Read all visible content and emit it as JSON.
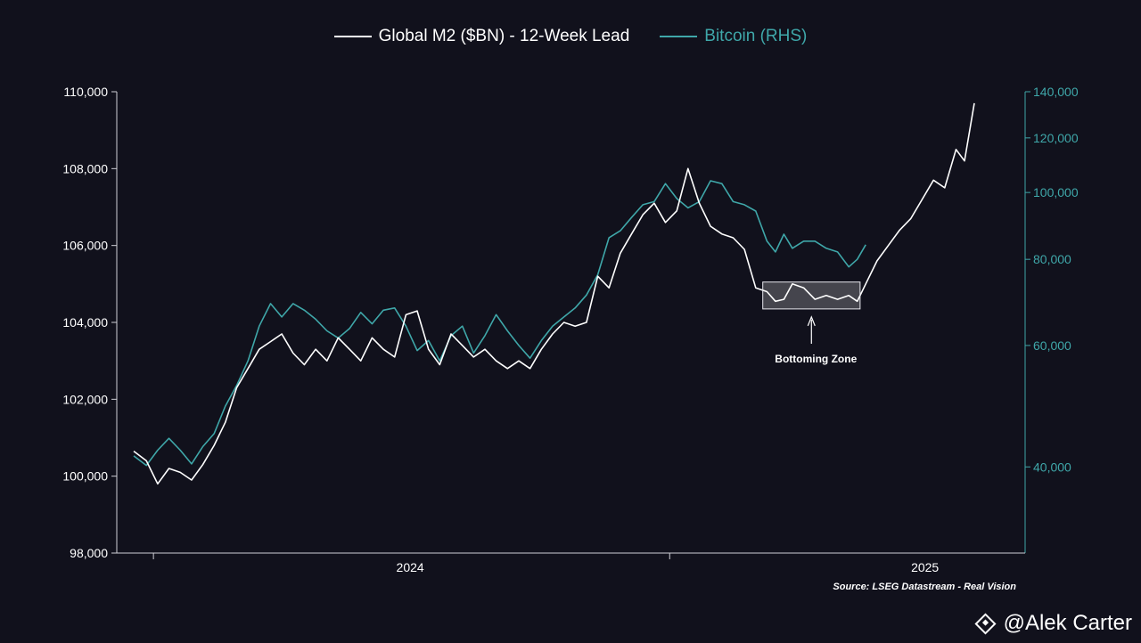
{
  "chart_data": {
    "type": "line",
    "title": "",
    "xlabel": "",
    "source": "Source: LSEG Datastream - Real Vision",
    "x_ticks": [
      "2024",
      "2025"
    ],
    "y_left": {
      "label": "",
      "min": 98000,
      "max": 110000,
      "ticks": [
        "98,000",
        "100,000",
        "102,000",
        "104,000",
        "106,000",
        "108,000",
        "110,000"
      ],
      "tick_values": [
        98000,
        100000,
        102000,
        104000,
        106000,
        108000,
        110000
      ]
    },
    "y_right": {
      "label": "",
      "scale": "log",
      "min": 30000,
      "max": 140000,
      "ticks": [
        "40,000",
        "60,000",
        "80,000",
        "100,000",
        "120,000",
        "140,000"
      ],
      "tick_values": [
        40000,
        60000,
        80000,
        100000,
        120000,
        140000
      ]
    },
    "series": [
      {
        "name": "Global M2 ($BN) - 12-Week Lead",
        "axis": "left",
        "color": "#ffffff",
        "points": [
          [
            "2023-09-01",
            100650
          ],
          [
            "2023-09-10",
            100400
          ],
          [
            "2023-09-18",
            99800
          ],
          [
            "2023-09-26",
            100200
          ],
          [
            "2023-10-04",
            100100
          ],
          [
            "2023-10-12",
            99900
          ],
          [
            "2023-10-20",
            100300
          ],
          [
            "2023-10-28",
            100800
          ],
          [
            "2023-11-05",
            101400
          ],
          [
            "2023-11-13",
            102300
          ],
          [
            "2023-11-21",
            102800
          ],
          [
            "2023-11-29",
            103300
          ],
          [
            "2023-12-07",
            103500
          ],
          [
            "2023-12-15",
            103700
          ],
          [
            "2023-12-23",
            103200
          ],
          [
            "2023-12-31",
            102900
          ],
          [
            "2024-01-08",
            103300
          ],
          [
            "2024-01-16",
            103000
          ],
          [
            "2024-01-24",
            103600
          ],
          [
            "2024-02-01",
            103300
          ],
          [
            "2024-02-09",
            103000
          ],
          [
            "2024-02-17",
            103600
          ],
          [
            "2024-02-25",
            103300
          ],
          [
            "2024-03-04",
            103100
          ],
          [
            "2024-03-12",
            104200
          ],
          [
            "2024-03-20",
            104300
          ],
          [
            "2024-03-28",
            103300
          ],
          [
            "2024-04-05",
            102900
          ],
          [
            "2024-04-13",
            103700
          ],
          [
            "2024-04-21",
            103400
          ],
          [
            "2024-04-29",
            103100
          ],
          [
            "2024-05-07",
            103300
          ],
          [
            "2024-05-15",
            103000
          ],
          [
            "2024-05-23",
            102800
          ],
          [
            "2024-05-31",
            103000
          ],
          [
            "2024-06-08",
            102800
          ],
          [
            "2024-06-16",
            103300
          ],
          [
            "2024-06-24",
            103700
          ],
          [
            "2024-07-02",
            104000
          ],
          [
            "2024-07-10",
            103900
          ],
          [
            "2024-07-18",
            104000
          ],
          [
            "2024-07-26",
            105200
          ],
          [
            "2024-08-03",
            104900
          ],
          [
            "2024-08-11",
            105800
          ],
          [
            "2024-08-19",
            106300
          ],
          [
            "2024-08-27",
            106800
          ],
          [
            "2024-09-04",
            107100
          ],
          [
            "2024-09-12",
            106600
          ],
          [
            "2024-09-20",
            106900
          ],
          [
            "2024-09-28",
            108000
          ],
          [
            "2024-10-06",
            107100
          ],
          [
            "2024-10-14",
            106500
          ],
          [
            "2024-10-22",
            106300
          ],
          [
            "2024-10-30",
            106200
          ],
          [
            "2024-11-07",
            105900
          ],
          [
            "2024-11-15",
            104900
          ],
          [
            "2024-11-23",
            104800
          ],
          [
            "2024-11-29",
            104550
          ],
          [
            "2024-12-05",
            104600
          ],
          [
            "2024-12-11",
            105000
          ],
          [
            "2024-12-19",
            104900
          ],
          [
            "2024-12-27",
            104600
          ],
          [
            "2025-01-04",
            104700
          ],
          [
            "2025-01-12",
            104600
          ],
          [
            "2025-01-20",
            104700
          ],
          [
            "2025-01-26",
            104550
          ],
          [
            "2025-02-01",
            105000
          ],
          [
            "2025-02-09",
            105600
          ],
          [
            "2025-02-17",
            106000
          ],
          [
            "2025-02-25",
            106400
          ],
          [
            "2025-03-05",
            106700
          ],
          [
            "2025-03-13",
            107200
          ],
          [
            "2025-03-21",
            107700
          ],
          [
            "2025-03-29",
            107500
          ],
          [
            "2025-04-06",
            108500
          ],
          [
            "2025-04-12",
            108200
          ],
          [
            "2025-04-19",
            109700
          ]
        ]
      },
      {
        "name": "Bitcoin (RHS)",
        "axis": "right",
        "color": "#3fa7a9",
        "points": [
          [
            "2023-09-01",
            41500
          ],
          [
            "2023-09-10",
            40200
          ],
          [
            "2023-09-18",
            42300
          ],
          [
            "2023-09-26",
            44000
          ],
          [
            "2023-10-04",
            42300
          ],
          [
            "2023-10-12",
            40400
          ],
          [
            "2023-10-20",
            42800
          ],
          [
            "2023-10-28",
            44700
          ],
          [
            "2023-11-05",
            49000
          ],
          [
            "2023-11-13",
            52500
          ],
          [
            "2023-11-21",
            57000
          ],
          [
            "2023-11-29",
            64000
          ],
          [
            "2023-12-07",
            69000
          ],
          [
            "2023-12-15",
            66000
          ],
          [
            "2023-12-23",
            69000
          ],
          [
            "2023-12-31",
            67500
          ],
          [
            "2024-01-08",
            65500
          ],
          [
            "2024-01-16",
            63000
          ],
          [
            "2024-01-24",
            61500
          ],
          [
            "2024-02-01",
            63500
          ],
          [
            "2024-02-09",
            67000
          ],
          [
            "2024-02-17",
            64500
          ],
          [
            "2024-02-25",
            67500
          ],
          [
            "2024-03-04",
            68000
          ],
          [
            "2024-03-12",
            64000
          ],
          [
            "2024-03-20",
            59000
          ],
          [
            "2024-03-28",
            61000
          ],
          [
            "2024-04-05",
            57000
          ],
          [
            "2024-04-13",
            62000
          ],
          [
            "2024-04-21",
            64000
          ],
          [
            "2024-04-29",
            58500
          ],
          [
            "2024-05-07",
            62000
          ],
          [
            "2024-05-15",
            66500
          ],
          [
            "2024-05-23",
            63000
          ],
          [
            "2024-05-31",
            60000
          ],
          [
            "2024-06-08",
            57500
          ],
          [
            "2024-06-16",
            61000
          ],
          [
            "2024-06-24",
            64000
          ],
          [
            "2024-07-02",
            66000
          ],
          [
            "2024-07-10",
            68000
          ],
          [
            "2024-07-18",
            71000
          ],
          [
            "2024-07-26",
            76000
          ],
          [
            "2024-08-03",
            86000
          ],
          [
            "2024-08-11",
            88000
          ],
          [
            "2024-08-19",
            92000
          ],
          [
            "2024-08-27",
            96000
          ],
          [
            "2024-09-04",
            97000
          ],
          [
            "2024-09-12",
            103000
          ],
          [
            "2024-09-20",
            98000
          ],
          [
            "2024-09-28",
            95000
          ],
          [
            "2024-10-06",
            97000
          ],
          [
            "2024-10-14",
            104000
          ],
          [
            "2024-10-22",
            103000
          ],
          [
            "2024-10-30",
            97000
          ],
          [
            "2024-11-07",
            96000
          ],
          [
            "2024-11-15",
            94000
          ],
          [
            "2024-11-23",
            85000
          ],
          [
            "2024-11-29",
            82000
          ],
          [
            "2024-12-05",
            87000
          ],
          [
            "2024-12-11",
            83000
          ],
          [
            "2024-12-19",
            85000
          ],
          [
            "2024-12-27",
            85000
          ],
          [
            "2025-01-04",
            83000
          ],
          [
            "2025-01-12",
            82000
          ],
          [
            "2025-01-20",
            78000
          ],
          [
            "2025-01-26",
            80000
          ],
          [
            "2025-02-01",
            84000
          ]
        ]
      }
    ],
    "annotations": [
      {
        "text": "Bottoming Zone",
        "x_range": [
          "2024-11-20",
          "2025-01-28"
        ],
        "y_range": [
          104350,
          105050
        ],
        "axis": "left"
      }
    ],
    "grid": false,
    "legend": "top-center"
  },
  "watermark": "@Alek Carter",
  "watermark_icon": "binance-logo-icon"
}
